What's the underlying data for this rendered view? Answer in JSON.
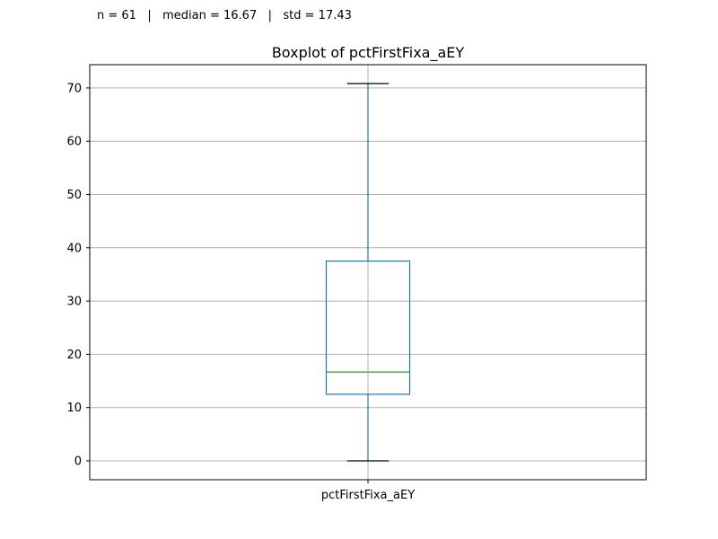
{
  "stats": {
    "text": "n = 61   |   median = 16.67   |   std = 17.43"
  },
  "colors": {
    "box": "#1f77b4",
    "median": "#2ca02c",
    "grid": "#b0b0b0",
    "whisker_cap": "#000000"
  },
  "chart_data": {
    "type": "boxplot",
    "title": "Boxplot of pctFirstFixa_aEY",
    "categories": [
      "pctFirstFixa_aEY"
    ],
    "series": [
      {
        "min": 0,
        "q1": 12.5,
        "median": 16.67,
        "q3": 37.5,
        "max": 70.83
      }
    ],
    "ylim": [
      -3.54,
      74.37
    ],
    "yticks": [
      0,
      10,
      20,
      30,
      40,
      50,
      60,
      70
    ],
    "grid": true,
    "xlabel": "",
    "ylabel": ""
  }
}
